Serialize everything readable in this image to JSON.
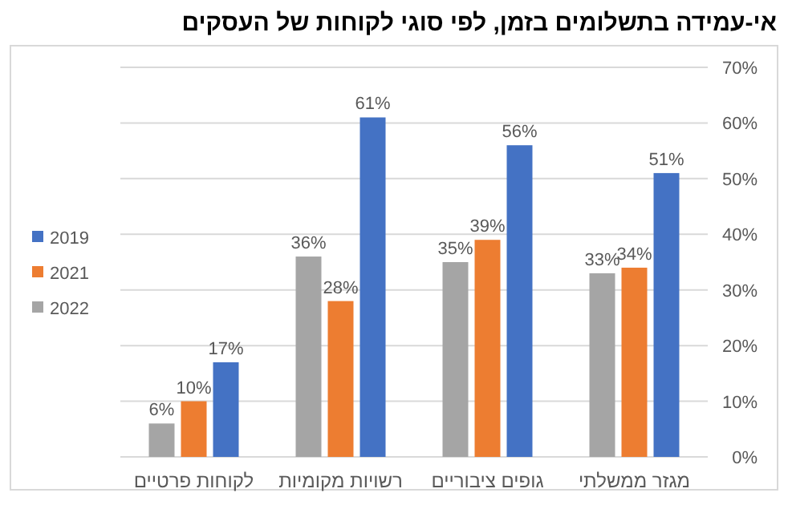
{
  "chart_data": {
    "type": "bar",
    "title": "אי-עמידה בתשלומים בזמן, לפי סוגי לקוחות של העסקים",
    "categories": [
      "לקוחות פרטיים",
      "רשויות מקומיות",
      "גופים ציבוריים",
      "מגזר ממשלתי"
    ],
    "series": [
      {
        "name": "2022",
        "color": "#a5a5a5",
        "values": [
          6,
          36,
          35,
          33
        ],
        "value_labels": [
          "6%",
          "36%",
          "35%",
          "33%"
        ]
      },
      {
        "name": "2021",
        "color": "#ed7d31",
        "values": [
          10,
          28,
          39,
          34
        ],
        "value_labels": [
          "10%",
          "28%",
          "39%",
          "34%"
        ]
      },
      {
        "name": "2019",
        "color": "#4472c4",
        "values": [
          17,
          61,
          56,
          51
        ],
        "value_labels": [
          "17%",
          "61%",
          "56%",
          "51%"
        ]
      }
    ],
    "ylim": [
      0,
      70
    ],
    "yticks": [
      {
        "value": 0,
        "label": "0%"
      },
      {
        "value": 10,
        "label": "10%"
      },
      {
        "value": 20,
        "label": "20%"
      },
      {
        "value": 30,
        "label": "30%"
      },
      {
        "value": 40,
        "label": "40%"
      },
      {
        "value": 50,
        "label": "50%"
      },
      {
        "value": 60,
        "label": "60%"
      },
      {
        "value": 70,
        "label": "70%"
      }
    ],
    "grid": "y",
    "legend": "left"
  }
}
